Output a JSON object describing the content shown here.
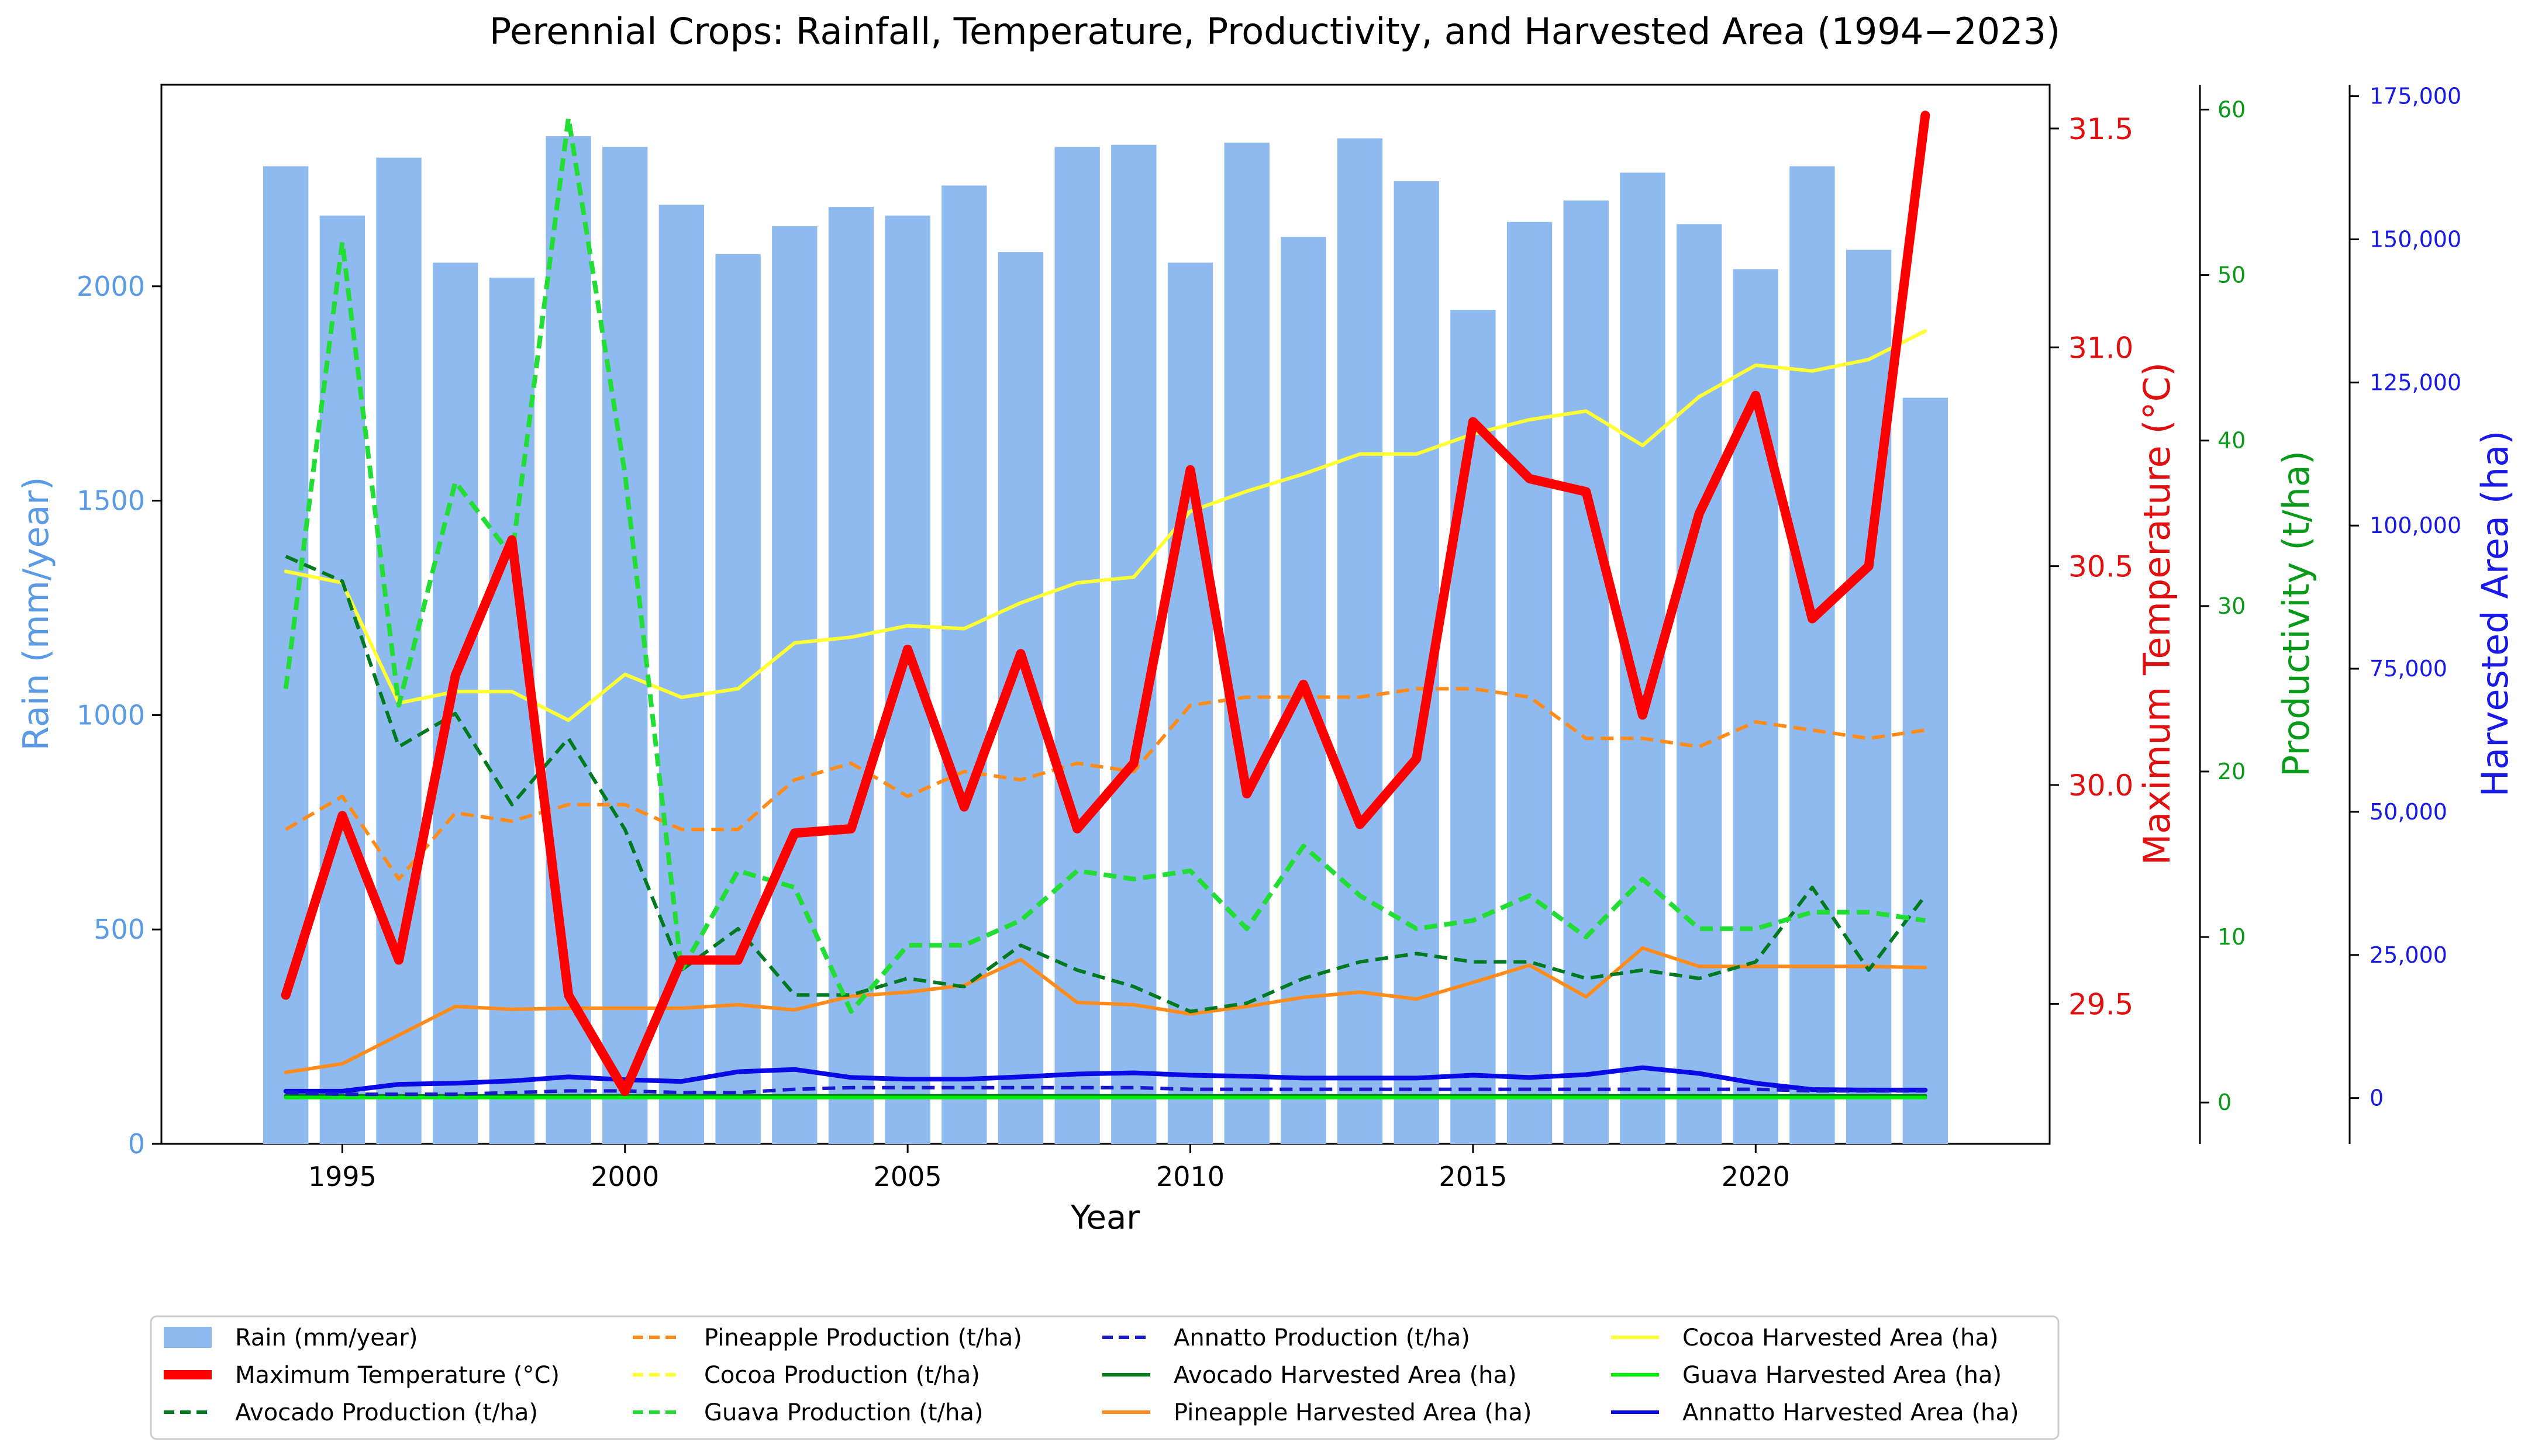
{
  "chart_data": {
    "type": "bar+line",
    "title": "Perennial Crops: Rainfall, Temperature, Productivity, and Harvested Area (1994−2023)",
    "xlabel": "Year",
    "colors": {
      "rain": "#8fbaf0",
      "rain_axis": "#5b9be6",
      "temperature": "#ff0000",
      "temp_axis": "#e01010",
      "productivity_axis": "#0a9a1a",
      "area_axis": "#1a1ae6",
      "avocado_prod": "#007a1e",
      "pineapple_prod": "#ff8c1a",
      "cocoa_prod": "#ffff33",
      "guava_prod": "#22dd33",
      "annatto_prod": "#1a1acc",
      "avocado_area": "#00801a",
      "pineapple_area": "#ff8c1a",
      "cocoa_area": "#ffff33",
      "guava_area": "#00ee00",
      "annatto_area": "#0a0ae6"
    },
    "x": [
      1994,
      1995,
      1996,
      1997,
      1998,
      1999,
      2000,
      2001,
      2002,
      2003,
      2004,
      2005,
      2006,
      2007,
      2008,
      2009,
      2010,
      2011,
      2012,
      2013,
      2014,
      2015,
      2016,
      2017,
      2018,
      2019,
      2020,
      2021,
      2022,
      2023
    ],
    "xticks": [
      1995,
      2000,
      2005,
      2010,
      2015,
      2020
    ],
    "xlim": [
      1991.8,
      2025.2
    ],
    "axes": {
      "rain": {
        "label": "Rain (mm/year)",
        "lim": [
          0,
          2470
        ],
        "ticks": [
          0,
          500,
          1000,
          1500,
          2000
        ],
        "tick_labels": [
          "0",
          "500",
          "1000",
          "1500",
          "2000"
        ]
      },
      "temperature": {
        "label": "Maximum Temperature (°C)",
        "lim": [
          29.18,
          31.6
        ],
        "ticks": [
          29.5,
          30.0,
          30.5,
          31.0,
          31.5
        ],
        "tick_labels": [
          "29.5",
          "30.0",
          "30.5",
          "31.0",
          "31.5"
        ]
      },
      "productivity": {
        "label": "Productivity (t/ha)",
        "lim": [
          -2.5,
          61.5
        ],
        "ticks": [
          0,
          10,
          20,
          30,
          40,
          50,
          60
        ],
        "tick_labels": [
          "0",
          "10",
          "20",
          "30",
          "40",
          "50",
          "60"
        ]
      },
      "area": {
        "label": "Harvested Area (ha)",
        "lim": [
          -8000,
          177000
        ],
        "ticks": [
          0,
          25000,
          50000,
          75000,
          100000,
          125000,
          150000,
          175000
        ],
        "tick_labels": [
          "0",
          "25,000",
          "50,000",
          "75,000",
          "100,000",
          "125,000",
          "150,000",
          "175,000"
        ]
      }
    },
    "series": [
      {
        "key": "rain",
        "name": "Rain (mm/year)",
        "kind": "bar",
        "axis": "rain",
        "values": [
          2280,
          2165,
          2300,
          2055,
          2020,
          2350,
          2325,
          2190,
          2075,
          2140,
          2185,
          2165,
          2235,
          2080,
          2325,
          2330,
          2055,
          2335,
          2115,
          2345,
          2245,
          1945,
          2150,
          2200,
          2265,
          2145,
          2040,
          2280,
          2085,
          1740
        ]
      },
      {
        "key": "temperature",
        "name": "Maximum Temperature (°C)",
        "kind": "line",
        "axis": "temperature",
        "width": 8,
        "values": [
          29.52,
          29.93,
          29.6,
          30.25,
          30.56,
          29.52,
          29.3,
          29.6,
          29.6,
          29.89,
          29.9,
          30.31,
          29.95,
          30.3,
          29.9,
          30.05,
          30.72,
          29.98,
          30.23,
          29.91,
          30.06,
          30.83,
          30.7,
          30.67,
          30.16,
          30.62,
          30.89,
          30.38,
          30.5,
          31.53
        ]
      },
      {
        "key": "avocado_prod",
        "name": "Avocado Production (t/ha)",
        "kind": "line",
        "axis": "productivity",
        "dash": true,
        "width": 3,
        "values": [
          33,
          31.5,
          21.5,
          23.5,
          18,
          22,
          16.5,
          8,
          10.5,
          6.5,
          6.5,
          7.5,
          7,
          9.5,
          8,
          7,
          5.5,
          6,
          7.5,
          8.5,
          9,
          8.5,
          8.5,
          7.5,
          8,
          7.5,
          8.5,
          13,
          8,
          12.5
        ]
      },
      {
        "key": "pineapple_prod",
        "name": "Pineapple Production (t/ha)",
        "kind": "line",
        "axis": "productivity",
        "dash": true,
        "width": 3,
        "values": [
          16.5,
          18.5,
          13.5,
          17.5,
          17,
          18,
          18,
          16.5,
          16.5,
          19.5,
          20.5,
          18.5,
          20,
          19.5,
          20.5,
          20,
          24,
          24.5,
          24.5,
          24.5,
          25,
          25,
          24.5,
          22,
          22,
          21.5,
          23,
          22.5,
          22,
          22.5
        ]
      },
      {
        "key": "cocoa_prod",
        "name": "Cocoa Production (t/ha)",
        "kind": "line",
        "axis": "productivity",
        "dash": true,
        "width": 3,
        "values": [
          null,
          null,
          null,
          null,
          null,
          null,
          null,
          null,
          null,
          null,
          null,
          null,
          null,
          null,
          null,
          null,
          null,
          null,
          null,
          null,
          null,
          null,
          null,
          null,
          null,
          null,
          null,
          null,
          null,
          null
        ]
      },
      {
        "key": "guava_prod",
        "name": "Guava Production (t/ha)",
        "kind": "line",
        "axis": "productivity",
        "dash": true,
        "width": 4,
        "values": [
          25,
          52,
          24,
          37.5,
          33,
          59.5,
          38,
          8,
          14,
          13,
          5.5,
          9.5,
          9.5,
          11,
          14,
          13.5,
          14,
          10.5,
          15.5,
          12.5,
          10.5,
          11,
          12.5,
          10,
          13.5,
          10.5,
          10.5,
          11.5,
          11.5,
          11
        ]
      },
      {
        "key": "annatto_prod",
        "name": "Annatto Production (t/ha)",
        "kind": "line",
        "axis": "productivity",
        "dash": true,
        "width": 3,
        "values": [
          0.6,
          0.5,
          0.5,
          0.5,
          0.6,
          0.7,
          0.7,
          0.6,
          0.6,
          0.8,
          0.9,
          0.9,
          0.9,
          0.9,
          0.9,
          0.9,
          0.8,
          0.8,
          0.8,
          0.8,
          0.8,
          0.8,
          0.8,
          0.8,
          0.8,
          0.8,
          0.8,
          0.7,
          0.7,
          0.7
        ]
      },
      {
        "key": "avocado_area",
        "name": "Avocado Harvested Area (ha)",
        "kind": "line",
        "axis": "area",
        "width": 3,
        "values": [
          400,
          400,
          400,
          400,
          400,
          400,
          400,
          400,
          400,
          400,
          400,
          400,
          400,
          400,
          400,
          400,
          400,
          400,
          400,
          400,
          400,
          400,
          400,
          400,
          400,
          400,
          400,
          400,
          400,
          400
        ]
      },
      {
        "key": "pineapple_area",
        "name": "Pineapple Harvested Area (ha)",
        "kind": "line",
        "axis": "area",
        "width": 3,
        "values": [
          4500,
          6000,
          11000,
          16000,
          15500,
          15700,
          15700,
          15700,
          16300,
          15400,
          17800,
          18500,
          19700,
          24200,
          16700,
          16300,
          14700,
          16000,
          17600,
          18500,
          17300,
          20200,
          23200,
          17700,
          26200,
          23000,
          23000,
          23000,
          23000,
          22800
        ]
      },
      {
        "key": "cocoa_area",
        "name": "Cocoa Harvested Area (ha)",
        "kind": "line",
        "axis": "area",
        "width": 3,
        "values": [
          92000,
          90000,
          69000,
          71000,
          71000,
          66000,
          74000,
          70000,
          71500,
          79500,
          80500,
          82500,
          82000,
          86500,
          90000,
          91000,
          102500,
          106000,
          109000,
          112500,
          112500,
          116000,
          118500,
          120000,
          114000,
          122500,
          128000,
          127000,
          129000,
          134000
        ]
      },
      {
        "key": "guava_area",
        "name": "Guava Harvested Area (ha)",
        "kind": "line",
        "axis": "area",
        "width": 3,
        "values": [
          100,
          100,
          100,
          100,
          100,
          100,
          100,
          100,
          100,
          100,
          100,
          100,
          100,
          100,
          100,
          100,
          100,
          100,
          100,
          100,
          100,
          100,
          100,
          100,
          100,
          100,
          100,
          100,
          100,
          100
        ]
      },
      {
        "key": "annatto_area",
        "name": "Annatto Harvested Area (ha)",
        "kind": "line",
        "axis": "area",
        "width": 4,
        "values": [
          1200,
          1200,
          2400,
          2600,
          3000,
          3700,
          3200,
          2900,
          4600,
          5000,
          3600,
          3300,
          3300,
          3700,
          4200,
          4400,
          4000,
          3800,
          3500,
          3500,
          3500,
          4000,
          3600,
          4100,
          5300,
          4300,
          2600,
          1500,
          1400,
          1400
        ]
      }
    ],
    "legend": {
      "position": "bottom",
      "columns": [
        [
          "rain",
          "temperature",
          "avocado_prod"
        ],
        [
          "pineapple_prod",
          "cocoa_prod",
          "guava_prod"
        ],
        [
          "annatto_prod",
          "avocado_area",
          "pineapple_area"
        ],
        [
          "cocoa_area",
          "guava_area",
          "annatto_area"
        ]
      ]
    }
  }
}
